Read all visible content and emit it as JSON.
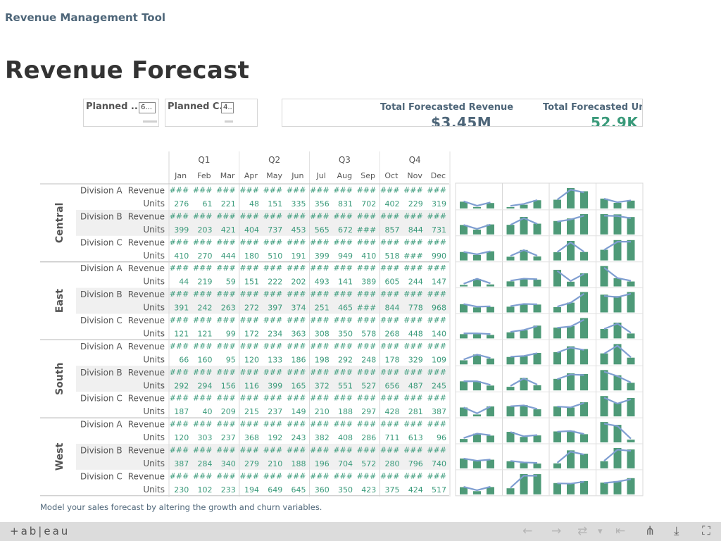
{
  "app_title": "Revenue Management Tool",
  "dashboard_title": "Revenue Forecast",
  "filters": [
    {
      "label": "Planned ...",
      "value": "6..."
    },
    {
      "label": "Planned C...",
      "value": "4.."
    }
  ],
  "kpis": {
    "revenue_label": "Total Forecasted Revenue",
    "revenue_value": "$3.45M",
    "units_label": "Total Forecasted Units",
    "units_value": "52.9K"
  },
  "quarters": [
    "Q1",
    "Q2",
    "Q3",
    "Q4"
  ],
  "months": [
    "Jan",
    "Feb",
    "Mar",
    "Apr",
    "May",
    "Jun",
    "Jul",
    "Aug",
    "Sep",
    "Oct",
    "Nov",
    "Dec"
  ],
  "measure_labels": [
    "Revenue",
    "Units"
  ],
  "hidden_value": "###",
  "regions": [
    {
      "name": "Central",
      "divisions": [
        {
          "name": "Division A",
          "units": [
            "276",
            "61",
            "221",
            "48",
            "151",
            "335",
            "356",
            "831",
            "702",
            "402",
            "229",
            "319"
          ]
        },
        {
          "name": "Division B",
          "units": [
            "399",
            "203",
            "421",
            "404",
            "737",
            "453",
            "565",
            "672",
            "###",
            "857",
            "844",
            "731"
          ]
        },
        {
          "name": "Division C",
          "units": [
            "410",
            "270",
            "444",
            "180",
            "510",
            "191",
            "399",
            "949",
            "410",
            "518",
            "###",
            "990"
          ]
        }
      ]
    },
    {
      "name": "East",
      "divisions": [
        {
          "name": "Division A",
          "units": [
            "44",
            "219",
            "59",
            "151",
            "222",
            "202",
            "493",
            "141",
            "389",
            "605",
            "244",
            "147"
          ]
        },
        {
          "name": "Division B",
          "units": [
            "391",
            "242",
            "263",
            "272",
            "397",
            "374",
            "251",
            "465",
            "###",
            "844",
            "778",
            "968"
          ]
        },
        {
          "name": "Division C",
          "units": [
            "121",
            "121",
            "99",
            "172",
            "234",
            "363",
            "308",
            "350",
            "578",
            "268",
            "448",
            "140"
          ]
        }
      ]
    },
    {
      "name": "South",
      "divisions": [
        {
          "name": "Division A",
          "units": [
            "66",
            "160",
            "95",
            "120",
            "133",
            "186",
            "198",
            "292",
            "248",
            "178",
            "329",
            "109"
          ]
        },
        {
          "name": "Division B",
          "units": [
            "292",
            "294",
            "156",
            "116",
            "399",
            "165",
            "372",
            "551",
            "527",
            "656",
            "487",
            "245"
          ]
        },
        {
          "name": "Division C",
          "units": [
            "187",
            "40",
            "209",
            "215",
            "237",
            "149",
            "210",
            "188",
            "297",
            "428",
            "281",
            "387"
          ]
        }
      ]
    },
    {
      "name": "West",
      "divisions": [
        {
          "name": "Division A",
          "units": [
            "120",
            "303",
            "237",
            "368",
            "192",
            "243",
            "382",
            "408",
            "286",
            "711",
            "613",
            "96"
          ]
        },
        {
          "name": "Division B",
          "units": [
            "387",
            "284",
            "340",
            "279",
            "210",
            "188",
            "196",
            "704",
            "572",
            "280",
            "796",
            "740"
          ]
        },
        {
          "name": "Division C",
          "units": [
            "230",
            "102",
            "233",
            "194",
            "649",
            "645",
            "360",
            "350",
            "423",
            "375",
            "424",
            "517"
          ]
        }
      ]
    }
  ],
  "footnote": "Model your sales forecast by altering the growth and churn variables.",
  "toolbar": {
    "logo": "+ab|eau",
    "undo_icon": "←",
    "redo_icon": "→",
    "revert_icon": "⇄",
    "dropdown_icon": "▾",
    "back_icon": "⇤",
    "share_icon": "⋔",
    "download_icon": "⤓",
    "fullscreen_icon": "⛶"
  },
  "colors": {
    "bar": "#4e9a78",
    "line": "#7f9ed1",
    "number": "#3a9a7a",
    "header": "#555555",
    "brand": "#4e6679"
  }
}
